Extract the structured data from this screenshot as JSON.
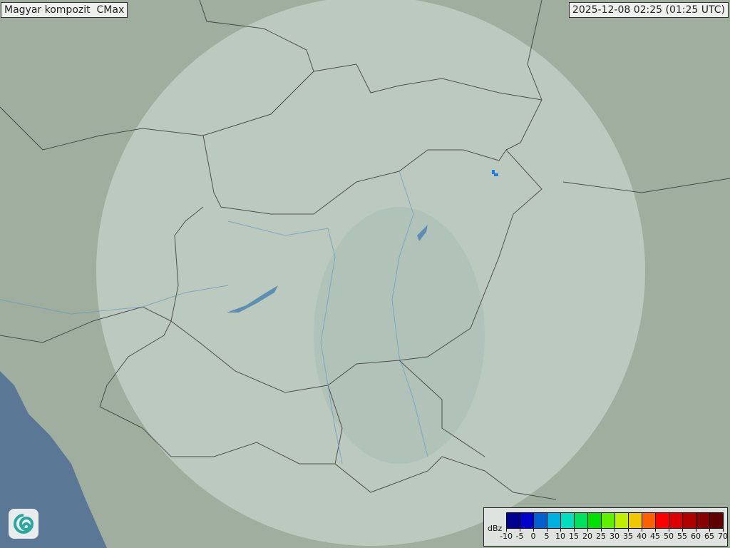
{
  "header": {
    "title": "Magyar kompozit  CMax",
    "timestamp": "2025-12-08 02:25 (01:25 UTC)"
  },
  "legend": {
    "unit": "dBz",
    "labels": [
      "-10",
      "-5",
      "0",
      "5",
      "10",
      "15",
      "20",
      "25",
      "30",
      "35",
      "40",
      "45",
      "50",
      "55",
      "60",
      "65",
      "70"
    ],
    "colors": [
      "#000090",
      "#0000cc",
      "#0060d0",
      "#00b0e0",
      "#00e0c0",
      "#00e060",
      "#00e000",
      "#60f000",
      "#c0f000",
      "#f0c800",
      "#ff6000",
      "#ff0000",
      "#dd0000",
      "#b00000",
      "#880000",
      "#600000"
    ]
  },
  "map": {
    "land_color": "#9fae9f",
    "radar_coverage_color": "#c8d6cf",
    "sea_color": "#5a7896",
    "lake_color": "#5f8fb0",
    "echo_color": "#1e7be0"
  },
  "logo": {
    "icon": "spiral-logo-icon"
  }
}
